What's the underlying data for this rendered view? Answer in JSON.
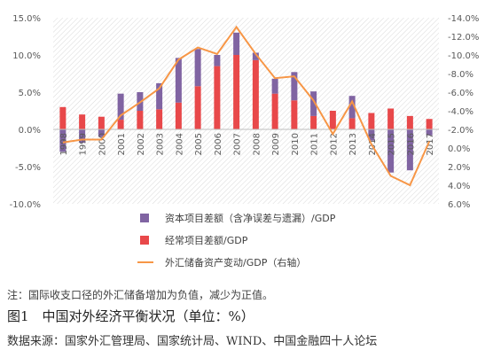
{
  "chart_data": {
    "type": "bar",
    "categories": [
      "1998",
      "1999",
      "2000",
      "2001",
      "2002",
      "2003",
      "2004",
      "2005",
      "2006",
      "2007",
      "2008",
      "2009",
      "2010",
      "2011",
      "2012",
      "2013",
      "2014",
      "2015",
      "2016",
      "2017"
    ],
    "series": [
      {
        "name": "资本项目差额（含净误差与遗漏）/GDP",
        "kind": "bar",
        "color": "#8064A2",
        "values": [
          -3.0,
          -1.8,
          -1.0,
          3.5,
          2.5,
          3.5,
          6.0,
          5.0,
          1.5,
          3.0,
          1.0,
          2.0,
          3.8,
          3.3,
          0.0,
          3.0,
          -1.5,
          -5.8,
          -5.5,
          -0.8
        ]
      },
      {
        "name": "经常项目差额/GDP",
        "kind": "bar",
        "color": "#E8484A",
        "values": [
          3.0,
          2.0,
          1.7,
          1.3,
          2.5,
          2.7,
          3.6,
          5.8,
          8.5,
          10.0,
          9.3,
          4.8,
          3.9,
          1.8,
          2.5,
          1.5,
          2.2,
          2.8,
          1.8,
          1.4
        ]
      },
      {
        "name": "外汇储备资产变动/GDP（右轴）",
        "kind": "line",
        "axis": "right",
        "color": "#F79646",
        "values": [
          -0.6,
          -0.9,
          -0.9,
          -3.5,
          -4.9,
          -6.4,
          -9.5,
          -10.8,
          -10.1,
          -13.0,
          -10.1,
          -7.5,
          -7.7,
          -5.1,
          -1.5,
          -5.0,
          -0.4,
          3.0,
          4.0,
          -0.7
        ]
      }
    ],
    "ylim": [
      -10,
      15
    ],
    "yticks": [
      "15.0%",
      "10.0%",
      "5.0%",
      "0.0%",
      "-5.0%",
      "-10.0%"
    ],
    "y2lim": [
      6,
      -14
    ],
    "y2ticks": [
      "-14.0%",
      "-12.0%",
      "-10.0%",
      "-8.0%",
      "-6.0%",
      "-4.0%",
      "-2.0%",
      "0.0%",
      "2.0%",
      "4.0%",
      "6.0%"
    ],
    "legend_position": "bottom",
    "legend": [
      {
        "label": "资本项目差额（含净误差与遗漏）/GDP",
        "color": "#8064A2",
        "type": "bar"
      },
      {
        "label": "经常项目差额/GDP",
        "color": "#E8484A",
        "type": "bar"
      },
      {
        "label": "外汇储备资产变动/GDP（右轴）",
        "color": "#F79646",
        "type": "line"
      }
    ],
    "grid": false,
    "background": "hatched"
  },
  "note": "注：国际收支口径的外汇储备增加为负值，减少为正值。",
  "caption": "图1　中国对外经济平衡状况（单位：%）",
  "source": "数据来源：国家外汇管理局、国家统计局、WIND、中国金融四十人论坛"
}
